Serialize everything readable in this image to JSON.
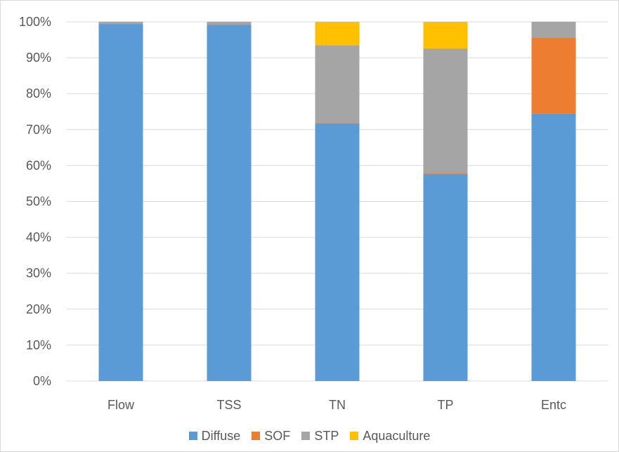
{
  "chart_data": {
    "type": "bar",
    "stacked": true,
    "percent": true,
    "categories": [
      "Flow",
      "TSS",
      "TN",
      "TP",
      "Entc"
    ],
    "series": [
      {
        "name": "Diffuse",
        "color": "#5b9bd5",
        "values": [
          99.4,
          99.2,
          71.7,
          57.7,
          74.5
        ]
      },
      {
        "name": "SOF",
        "color": "#ed7d31",
        "values": [
          0.0,
          0.0,
          0.2,
          0.2,
          21.0
        ]
      },
      {
        "name": "STP",
        "color": "#a5a5a5",
        "values": [
          0.6,
          0.8,
          21.6,
          34.7,
          4.5
        ]
      },
      {
        "name": "Aquaculture",
        "color": "#ffc000",
        "values": [
          0.0,
          0.0,
          6.5,
          7.4,
          0.0
        ]
      }
    ],
    "ylim": [
      0,
      100
    ],
    "yticks": [
      "0%",
      "10%",
      "20%",
      "30%",
      "40%",
      "50%",
      "60%",
      "70%",
      "80%",
      "90%",
      "100%"
    ],
    "grid": true,
    "legend_position": "bottom",
    "title": "",
    "xlabel": "",
    "ylabel": ""
  }
}
